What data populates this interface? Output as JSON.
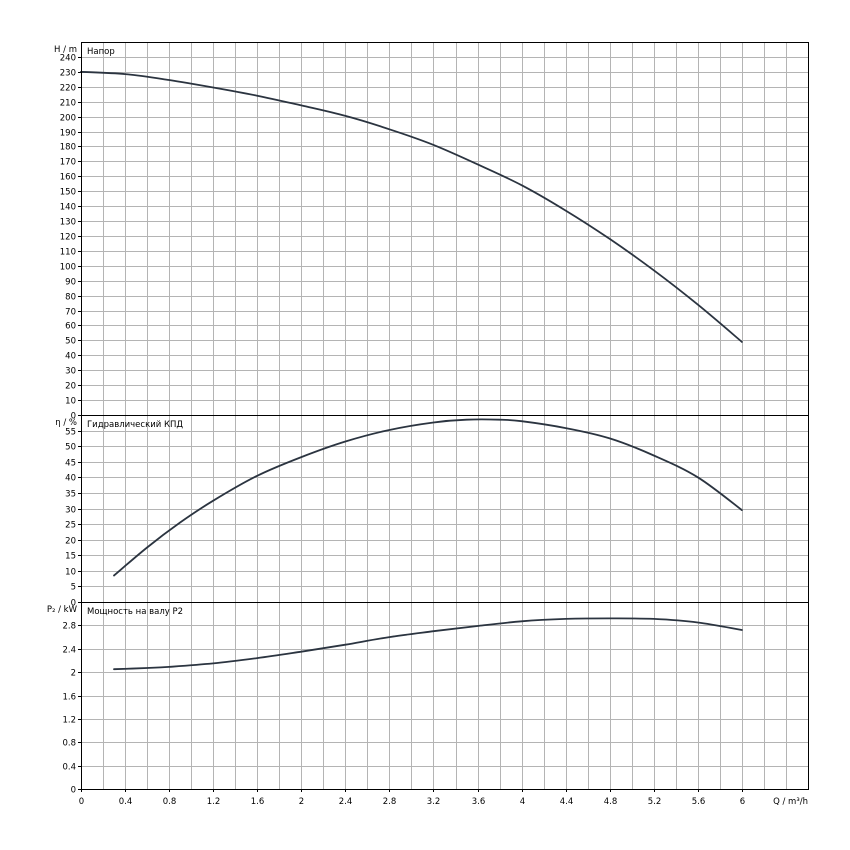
{
  "chart_data": [
    {
      "type": "line",
      "title": "Напор",
      "ylabel": "H / m",
      "ylim": [
        0,
        250
      ],
      "y_ticks": [
        0,
        10,
        20,
        30,
        40,
        50,
        60,
        70,
        80,
        90,
        100,
        110,
        120,
        130,
        140,
        150,
        160,
        170,
        180,
        190,
        200,
        210,
        220,
        230,
        240
      ],
      "x": [
        0,
        0.4,
        0.8,
        1.2,
        1.6,
        2.0,
        2.4,
        2.8,
        3.2,
        3.6,
        4.0,
        4.4,
        4.8,
        5.2,
        5.6,
        6.0
      ],
      "series": [
        {
          "values": [
            230,
            228.5,
            224.5,
            219.5,
            214,
            207.5,
            200.5,
            191.5,
            181,
            168,
            154,
            137,
            118,
            97,
            74,
            49
          ]
        }
      ]
    },
    {
      "type": "line",
      "title": "Гидравлический КПД",
      "ylabel": "η / %",
      "ylim": [
        0,
        60
      ],
      "y_ticks": [
        0,
        5,
        10,
        15,
        20,
        25,
        30,
        35,
        40,
        45,
        50,
        55
      ],
      "x": [
        0.3,
        0.6,
        0.9,
        1.2,
        1.6,
        2.0,
        2.4,
        2.8,
        3.2,
        3.5,
        3.8,
        4.0,
        4.4,
        4.8,
        5.2,
        5.6,
        6.0
      ],
      "series": [
        {
          "values": [
            8.5,
            17.5,
            25.5,
            32.5,
            40.5,
            46.5,
            51.5,
            55.2,
            57.6,
            58.5,
            58.5,
            58,
            55.8,
            52.5,
            47,
            40,
            29.5
          ]
        }
      ]
    },
    {
      "type": "line",
      "title": "Мощность на валу P2",
      "ylabel": "P₂ / kW",
      "ylim": [
        0,
        3.2
      ],
      "y_ticks": [
        0,
        0.4,
        0.8,
        1.2,
        1.6,
        2.0,
        2.4,
        2.8
      ],
      "y_tick_labels": [
        "0",
        "0.4",
        "0.8",
        "1.2",
        "1.6",
        "2",
        "2.4",
        "2.8"
      ],
      "x": [
        0.3,
        0.6,
        0.8,
        1.2,
        1.6,
        2.0,
        2.4,
        2.8,
        3.2,
        3.6,
        4.0,
        4.4,
        4.8,
        5.2,
        5.6,
        6.0
      ],
      "series": [
        {
          "values": [
            2.05,
            2.07,
            2.09,
            2.15,
            2.24,
            2.35,
            2.47,
            2.6,
            2.7,
            2.79,
            2.87,
            2.91,
            2.92,
            2.91,
            2.85,
            2.72
          ]
        }
      ]
    }
  ],
  "x_axis": {
    "label": "Q / m³/h",
    "xlim": [
      0,
      6.6
    ],
    "ticks": [
      0,
      0.4,
      0.8,
      1.2,
      1.6,
      2.0,
      2.4,
      2.8,
      3.2,
      3.6,
      4.0,
      4.4,
      4.8,
      5.2,
      5.6,
      6.0
    ],
    "tick_labels": [
      "0",
      "0.4",
      "0.8",
      "1.2",
      "1.6",
      "2",
      "2.4",
      "2.8",
      "3.2",
      "3.6",
      "4",
      "4.4",
      "4.8",
      "5.2",
      "5.6",
      "6"
    ],
    "minor_step": 0.2
  },
  "colors": {
    "curve": "#2b3440",
    "grid": "#b4b4b4",
    "axis": "#000000"
  },
  "grid": true
}
